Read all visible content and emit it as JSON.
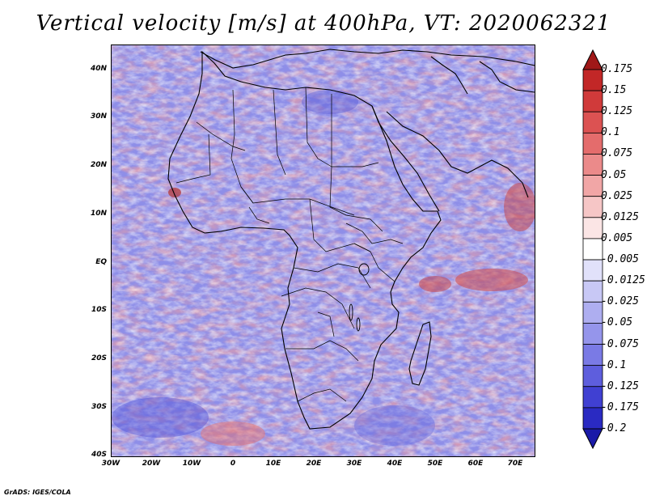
{
  "title": "Vertical velocity [m/s] at 400hPa, VT: 2020062321",
  "credit": "GrADS: IGES/COLA",
  "map": {
    "lat_labels": [
      "40N",
      "30N",
      "20N",
      "10N",
      "EQ",
      "10S",
      "20S",
      "30S",
      "40S"
    ],
    "lon_labels": [
      "30W",
      "20W",
      "10W",
      "0",
      "10E",
      "20E",
      "30E",
      "40E",
      "50E",
      "60E",
      "70E"
    ]
  },
  "colorbar": {
    "labels": [
      "0.175",
      "0.15",
      "0.125",
      "0.1",
      "0.075",
      "0.05",
      "0.025",
      "0.0125",
      "0.005",
      "-0.005",
      "-0.0125",
      "-0.025",
      "-0.05",
      "-0.075",
      "-0.1",
      "-0.125",
      "-0.175",
      "-0.2"
    ],
    "colors": [
      "#a01818",
      "#c22727",
      "#d03a3a",
      "#dc5252",
      "#e46c6c",
      "#eb8a8a",
      "#f1a6a6",
      "#f6c6c6",
      "#fbe5e5",
      "#ffffff",
      "#e1e1fa",
      "#c8c8f5",
      "#aeaef0",
      "#9595eb",
      "#7a7ae5",
      "#5e5edd",
      "#4040d2",
      "#2a2ac2",
      "#1a1aa8"
    ]
  }
}
